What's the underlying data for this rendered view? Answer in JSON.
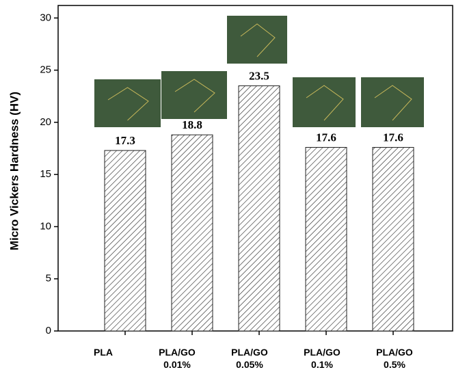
{
  "chart_data": {
    "type": "bar",
    "y_label": "Micro Vickers Hardness (HV)",
    "categories": [
      "PLA",
      "PLA/GO 0.01%",
      "PLA/GO 0.05%",
      "PLA/GO 0.1%",
      "PLA/GO 0.5%"
    ],
    "values": [
      17.3,
      18.8,
      23.5,
      17.6,
      17.6
    ],
    "ylim": [
      0,
      31.2
    ],
    "yticks": [
      0,
      5,
      10,
      15,
      20,
      25,
      30
    ],
    "color": "#222222",
    "hatch": true
  }
}
